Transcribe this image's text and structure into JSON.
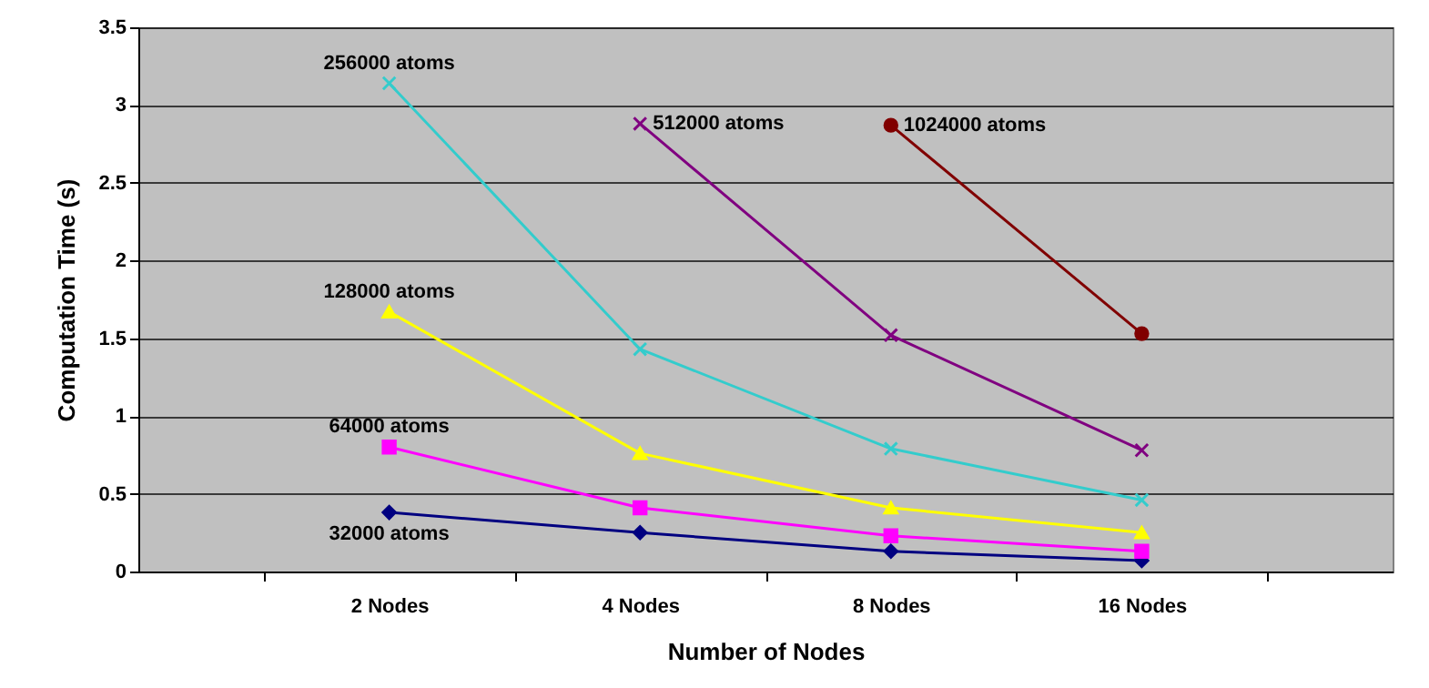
{
  "chart_data": {
    "type": "line",
    "xlabel": "Number of Nodes",
    "ylabel": "Computation Time (s)",
    "categories": [
      "2 Nodes",
      "4 Nodes",
      "8 Nodes",
      "16 Nodes"
    ],
    "series": [
      {
        "name": "32000 atoms",
        "color": "#000080",
        "marker": "diamond",
        "values": [
          0.38,
          0.25,
          0.13,
          0.07
        ]
      },
      {
        "name": "64000 atoms",
        "color": "#ff00ff",
        "marker": "square",
        "values": [
          0.8,
          0.41,
          0.23,
          0.13
        ]
      },
      {
        "name": "128000 atoms",
        "color": "#ffff00",
        "marker": "triangle",
        "values": [
          1.67,
          0.76,
          0.41,
          0.25
        ]
      },
      {
        "name": "256000 atoms",
        "color": "#33cccc",
        "marker": "cross",
        "values": [
          3.14,
          1.43,
          0.79,
          0.46
        ]
      },
      {
        "name": "512000 atoms",
        "color": "#800080",
        "marker": "cross",
        "values": [
          null,
          2.88,
          1.52,
          0.78
        ]
      },
      {
        "name": "1024000 atoms",
        "color": "#800000",
        "marker": "circle",
        "values": [
          null,
          null,
          2.87,
          1.53
        ]
      }
    ],
    "ylim": [
      0,
      3.5
    ],
    "yticks": [
      0,
      0.5,
      1,
      1.5,
      2,
      2.5,
      3,
      3.5
    ],
    "grid": "y",
    "legend": false
  }
}
